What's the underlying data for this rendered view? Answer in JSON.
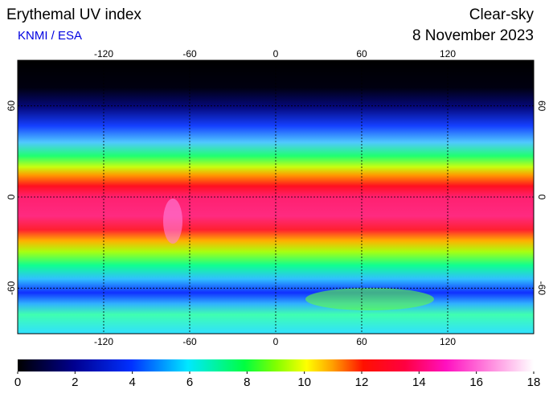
{
  "title": "Erythemal UV index",
  "source": "KNMI / ESA",
  "condition": "Clear-sky",
  "date": "8 November 2023",
  "map": {
    "lonlim": [
      -180,
      180
    ],
    "latlim": [
      -90,
      90
    ],
    "lon_ticks": [
      -120,
      -60,
      0,
      60,
      120
    ],
    "lat_ticks": [
      60,
      0,
      -60
    ],
    "grid": true
  },
  "colorbar": {
    "lim": [
      0,
      18
    ],
    "ticks": [
      0,
      2,
      4,
      6,
      8,
      10,
      12,
      14,
      16,
      18
    ]
  }
}
